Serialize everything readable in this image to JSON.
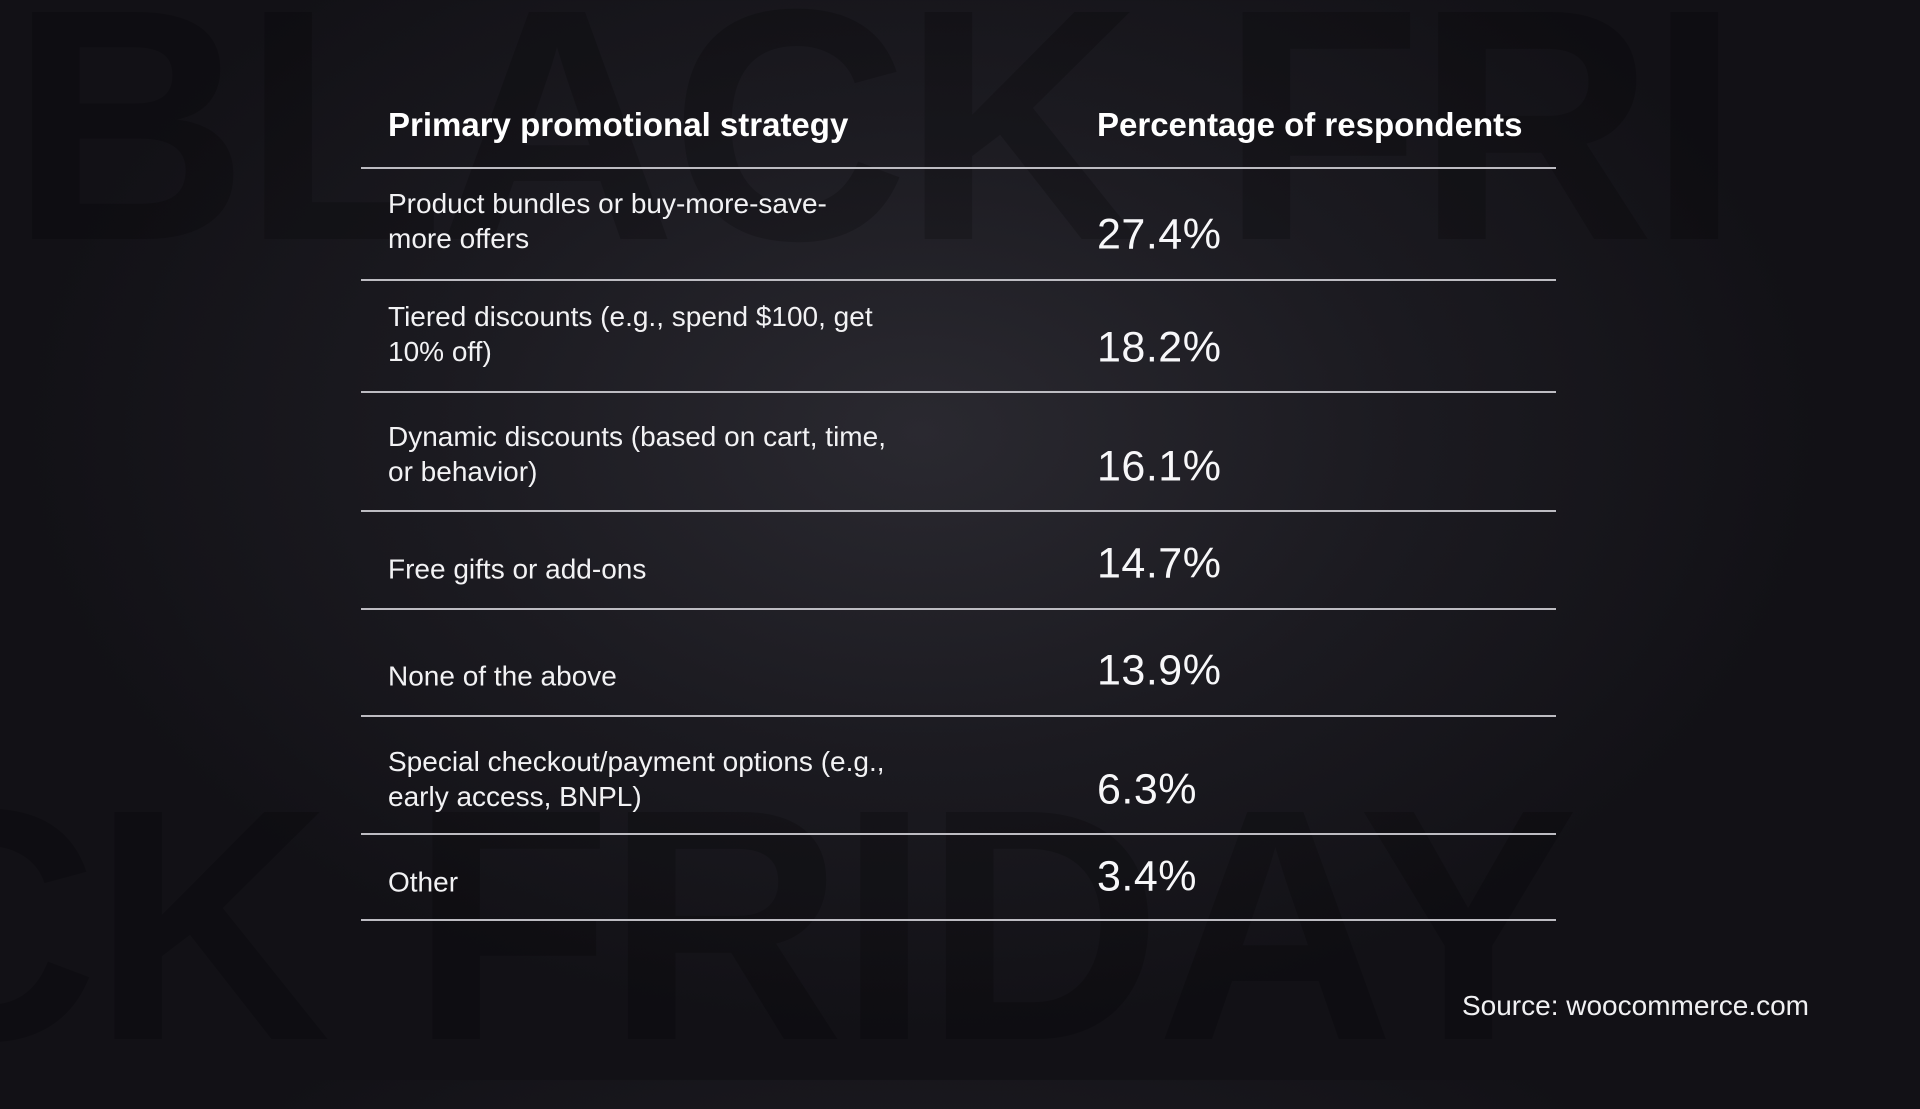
{
  "watermark": [
    "BLACK FRI",
    "CK FRIDAY"
  ],
  "table": {
    "headers": [
      "Primary promotional strategy",
      "Percentage of respondents"
    ],
    "rows": [
      {
        "strategy": "Product bundles or buy-more-save-more offers",
        "percentage": "27.4%"
      },
      {
        "strategy": "Tiered discounts (e.g., spend $100, get 10% off)",
        "percentage": "18.2%"
      },
      {
        "strategy": "Dynamic discounts (based on cart, time, or behavior)",
        "percentage": "16.1%"
      },
      {
        "strategy": "Free gifts or add-ons",
        "percentage": "14.7%"
      },
      {
        "strategy": "None of the above",
        "percentage": "13.9%"
      },
      {
        "strategy": "Special checkout/payment options (e.g.,  early access, BNPL)",
        "percentage": "6.3%"
      },
      {
        "strategy": "Other",
        "percentage": "3.4%"
      }
    ]
  },
  "source": "Source: woocommerce.com"
}
